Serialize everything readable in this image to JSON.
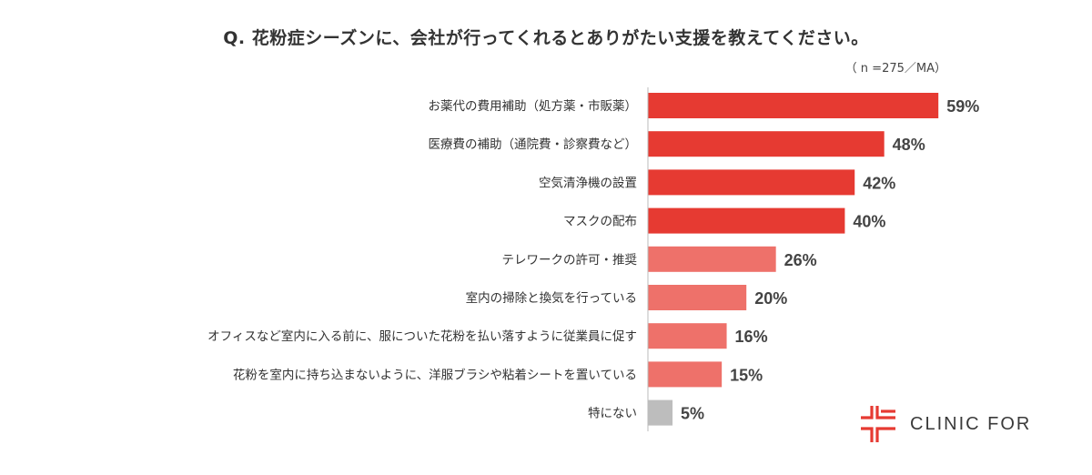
{
  "chart_data": {
    "type": "bar",
    "orientation": "horizontal",
    "title": "Q. 花粉症シーズンに、会社が行ってくれるとありがたい支援を教えてください。",
    "note": "（ n =275／MA）",
    "categories": [
      "お薬代の費用補助（処方薬・市販薬）",
      "医療費の補助（通院費・診察費など）",
      "空気清浄機の設置",
      "マスクの配布",
      "テレワークの許可・推奨",
      "室内の掃除と換気を行っている",
      "オフィスなど室内に入る前に、服についた花粉を払い落すように従業員に促す",
      "花粉を室内に持ち込まないように、洋服ブラシや粘着シートを置いている",
      "特にない"
    ],
    "values": [
      59,
      48,
      42,
      40,
      26,
      20,
      16,
      15,
      5
    ],
    "value_labels": [
      "59%",
      "48%",
      "42%",
      "40%",
      "26%",
      "20%",
      "16%",
      "15%",
      "5%"
    ],
    "unit": "%",
    "bar_colors": [
      "#e63a32",
      "#e63a32",
      "#e63a32",
      "#e63a32",
      "#ee716a",
      "#ee716a",
      "#ee716a",
      "#ee716a",
      "#bdbdbd"
    ],
    "grid": false,
    "legend": "none"
  },
  "logo": {
    "text": "CLINIC FOR",
    "color": "#e63a32"
  }
}
